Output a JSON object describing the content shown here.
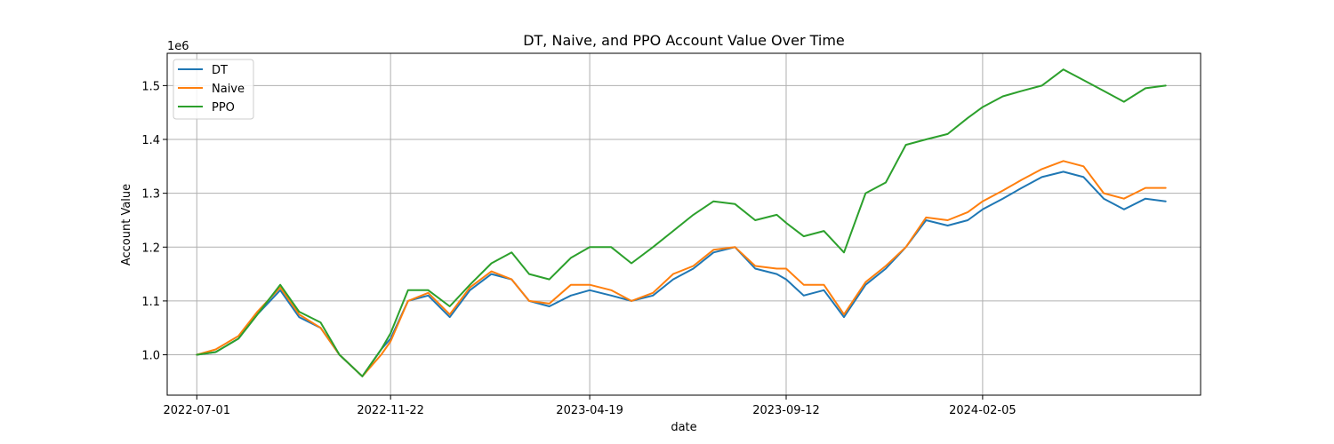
{
  "chart_data": {
    "type": "line",
    "title": "DT, Naive, and PPO Account Value Over Time",
    "xlabel": "date",
    "ylabel": "Account Value",
    "y_offset_label": "1e6",
    "x_tick_labels": [
      "2022-07-01",
      "2022-11-22",
      "2023-04-19",
      "2023-09-12",
      "2024-02-05"
    ],
    "x_ticks": [
      "2022-07-01",
      "2022-11-22",
      "2023-04-19",
      "2023-09-12",
      "2024-02-05"
    ],
    "xlim": [
      "2022-06-09",
      "2024-07-16"
    ],
    "y_tick_labels": [
      "1.0",
      "1.1",
      "1.2",
      "1.3",
      "1.4",
      "1.5"
    ],
    "y_ticks": [
      1.0,
      1.1,
      1.2,
      1.3,
      1.4,
      1.5
    ],
    "ylim": [
      0.925,
      1.56
    ],
    "grid": true,
    "legend_position": "top-left",
    "x": [
      "2022-07-01",
      "2022-07-15",
      "2022-08-01",
      "2022-08-15",
      "2022-09-01",
      "2022-09-15",
      "2022-10-01",
      "2022-10-15",
      "2022-11-01",
      "2022-11-15",
      "2022-11-22",
      "2022-12-05",
      "2022-12-20",
      "2023-01-05",
      "2023-01-20",
      "2023-02-05",
      "2023-02-20",
      "2023-03-05",
      "2023-03-20",
      "2023-04-05",
      "2023-04-19",
      "2023-05-05",
      "2023-05-20",
      "2023-06-05",
      "2023-06-20",
      "2023-07-05",
      "2023-07-20",
      "2023-08-05",
      "2023-08-20",
      "2023-09-05",
      "2023-09-12",
      "2023-09-25",
      "2023-10-10",
      "2023-10-25",
      "2023-11-10",
      "2023-11-25",
      "2023-12-10",
      "2023-12-25",
      "2024-01-10",
      "2024-01-25",
      "2024-02-05",
      "2024-02-20",
      "2024-03-05",
      "2024-03-20",
      "2024-04-05",
      "2024-04-20",
      "2024-05-05",
      "2024-05-20",
      "2024-06-05",
      "2024-06-20"
    ],
    "series": [
      {
        "name": "DT",
        "color": "#1f77b4",
        "values": [
          1.0,
          1.005,
          1.03,
          1.075,
          1.12,
          1.07,
          1.05,
          1.0,
          0.96,
          1.01,
          1.03,
          1.1,
          1.11,
          1.07,
          1.12,
          1.15,
          1.14,
          1.1,
          1.09,
          1.11,
          1.12,
          1.11,
          1.1,
          1.11,
          1.14,
          1.16,
          1.19,
          1.2,
          1.16,
          1.15,
          1.14,
          1.11,
          1.12,
          1.07,
          1.13,
          1.16,
          1.2,
          1.25,
          1.24,
          1.25,
          1.27,
          1.29,
          1.31,
          1.33,
          1.34,
          1.33,
          1.29,
          1.27,
          1.29,
          1.285
        ]
      },
      {
        "name": "Naive",
        "color": "#ff7f0e",
        "values": [
          1.0,
          1.01,
          1.035,
          1.08,
          1.125,
          1.075,
          1.05,
          1.0,
          0.96,
          1.0,
          1.025,
          1.1,
          1.115,
          1.075,
          1.125,
          1.155,
          1.14,
          1.1,
          1.095,
          1.13,
          1.13,
          1.12,
          1.1,
          1.115,
          1.15,
          1.165,
          1.195,
          1.2,
          1.165,
          1.16,
          1.16,
          1.13,
          1.13,
          1.075,
          1.135,
          1.165,
          1.2,
          1.255,
          1.25,
          1.265,
          1.285,
          1.305,
          1.325,
          1.345,
          1.36,
          1.35,
          1.3,
          1.29,
          1.31,
          1.31
        ]
      },
      {
        "name": "PPO",
        "color": "#2ca02c",
        "values": [
          1.0,
          1.005,
          1.03,
          1.075,
          1.13,
          1.08,
          1.06,
          1.0,
          0.96,
          1.01,
          1.04,
          1.12,
          1.12,
          1.09,
          1.13,
          1.17,
          1.19,
          1.15,
          1.14,
          1.18,
          1.2,
          1.2,
          1.17,
          1.2,
          1.23,
          1.26,
          1.285,
          1.28,
          1.25,
          1.26,
          1.245,
          1.22,
          1.23,
          1.19,
          1.3,
          1.32,
          1.39,
          1.4,
          1.41,
          1.44,
          1.46,
          1.48,
          1.49,
          1.5,
          1.53,
          1.51,
          1.49,
          1.47,
          1.495,
          1.5
        ]
      }
    ]
  }
}
